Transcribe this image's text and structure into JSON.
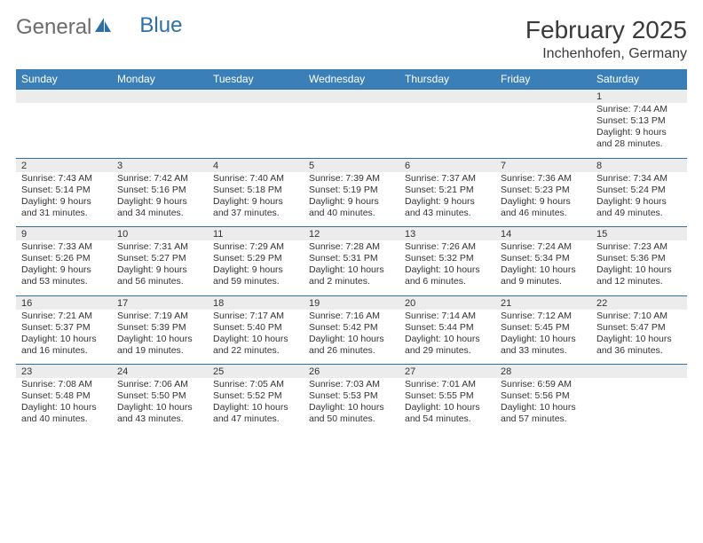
{
  "logo": {
    "part1": "General",
    "part2": "Blue"
  },
  "title": "February 2025",
  "location": "Inchenhofen, Germany",
  "colors": {
    "header_bg": "#3b7fb8",
    "header_text": "#ffffff",
    "daynum_bg": "#ececec",
    "border": "#2f6fa7",
    "text": "#333333",
    "logo_gray": "#6b6b6b",
    "logo_blue": "#2f6fa7"
  },
  "day_headers": [
    "Sunday",
    "Monday",
    "Tuesday",
    "Wednesday",
    "Thursday",
    "Friday",
    "Saturday"
  ],
  "weeks": [
    {
      "nums": [
        "",
        "",
        "",
        "",
        "",
        "",
        "1"
      ],
      "cells": [
        "",
        "",
        "",
        "",
        "",
        "",
        "Sunrise: 7:44 AM\nSunset: 5:13 PM\nDaylight: 9 hours and 28 minutes."
      ]
    },
    {
      "nums": [
        "2",
        "3",
        "4",
        "5",
        "6",
        "7",
        "8"
      ],
      "cells": [
        "Sunrise: 7:43 AM\nSunset: 5:14 PM\nDaylight: 9 hours and 31 minutes.",
        "Sunrise: 7:42 AM\nSunset: 5:16 PM\nDaylight: 9 hours and 34 minutes.",
        "Sunrise: 7:40 AM\nSunset: 5:18 PM\nDaylight: 9 hours and 37 minutes.",
        "Sunrise: 7:39 AM\nSunset: 5:19 PM\nDaylight: 9 hours and 40 minutes.",
        "Sunrise: 7:37 AM\nSunset: 5:21 PM\nDaylight: 9 hours and 43 minutes.",
        "Sunrise: 7:36 AM\nSunset: 5:23 PM\nDaylight: 9 hours and 46 minutes.",
        "Sunrise: 7:34 AM\nSunset: 5:24 PM\nDaylight: 9 hours and 49 minutes."
      ]
    },
    {
      "nums": [
        "9",
        "10",
        "11",
        "12",
        "13",
        "14",
        "15"
      ],
      "cells": [
        "Sunrise: 7:33 AM\nSunset: 5:26 PM\nDaylight: 9 hours and 53 minutes.",
        "Sunrise: 7:31 AM\nSunset: 5:27 PM\nDaylight: 9 hours and 56 minutes.",
        "Sunrise: 7:29 AM\nSunset: 5:29 PM\nDaylight: 9 hours and 59 minutes.",
        "Sunrise: 7:28 AM\nSunset: 5:31 PM\nDaylight: 10 hours and 2 minutes.",
        "Sunrise: 7:26 AM\nSunset: 5:32 PM\nDaylight: 10 hours and 6 minutes.",
        "Sunrise: 7:24 AM\nSunset: 5:34 PM\nDaylight: 10 hours and 9 minutes.",
        "Sunrise: 7:23 AM\nSunset: 5:36 PM\nDaylight: 10 hours and 12 minutes."
      ]
    },
    {
      "nums": [
        "16",
        "17",
        "18",
        "19",
        "20",
        "21",
        "22"
      ],
      "cells": [
        "Sunrise: 7:21 AM\nSunset: 5:37 PM\nDaylight: 10 hours and 16 minutes.",
        "Sunrise: 7:19 AM\nSunset: 5:39 PM\nDaylight: 10 hours and 19 minutes.",
        "Sunrise: 7:17 AM\nSunset: 5:40 PM\nDaylight: 10 hours and 22 minutes.",
        "Sunrise: 7:16 AM\nSunset: 5:42 PM\nDaylight: 10 hours and 26 minutes.",
        "Sunrise: 7:14 AM\nSunset: 5:44 PM\nDaylight: 10 hours and 29 minutes.",
        "Sunrise: 7:12 AM\nSunset: 5:45 PM\nDaylight: 10 hours and 33 minutes.",
        "Sunrise: 7:10 AM\nSunset: 5:47 PM\nDaylight: 10 hours and 36 minutes."
      ]
    },
    {
      "nums": [
        "23",
        "24",
        "25",
        "26",
        "27",
        "28",
        ""
      ],
      "cells": [
        "Sunrise: 7:08 AM\nSunset: 5:48 PM\nDaylight: 10 hours and 40 minutes.",
        "Sunrise: 7:06 AM\nSunset: 5:50 PM\nDaylight: 10 hours and 43 minutes.",
        "Sunrise: 7:05 AM\nSunset: 5:52 PM\nDaylight: 10 hours and 47 minutes.",
        "Sunrise: 7:03 AM\nSunset: 5:53 PM\nDaylight: 10 hours and 50 minutes.",
        "Sunrise: 7:01 AM\nSunset: 5:55 PM\nDaylight: 10 hours and 54 minutes.",
        "Sunrise: 6:59 AM\nSunset: 5:56 PM\nDaylight: 10 hours and 57 minutes.",
        ""
      ]
    }
  ]
}
